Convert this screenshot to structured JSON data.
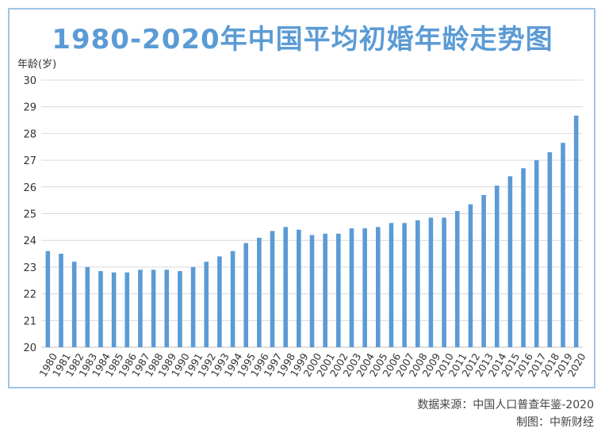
{
  "title": "1980-2020年中国平均初婚年龄走势图",
  "source_line": "数据来源：中国人口普查年鉴-2020",
  "credit_line": "制图：中新财经",
  "colors": {
    "bar": "#5b9bd5",
    "title": "#5b9bd5",
    "frame": "#9fc4e8",
    "grid": "#d9d9d9"
  },
  "chart_data": {
    "type": "bar",
    "ylabel": "年龄(岁)",
    "xlabel": "",
    "ylim": [
      20,
      30
    ],
    "yticks": [
      20,
      21,
      22,
      23,
      24,
      25,
      26,
      27,
      28,
      29,
      30
    ],
    "grid": true,
    "legend": "none",
    "categories": [
      "1980",
      "1981",
      "1982",
      "1983",
      "1984",
      "1985",
      "1986",
      "1987",
      "1988",
      "1989",
      "1990",
      "1991",
      "1992",
      "1993",
      "1994",
      "1995",
      "1996",
      "1997",
      "1998",
      "1999",
      "2000",
      "2001",
      "2002",
      "2003",
      "2004",
      "2005",
      "2006",
      "2007",
      "2008",
      "2009",
      "2010",
      "2011",
      "2012",
      "2013",
      "2014",
      "2015",
      "2016",
      "2017",
      "2018",
      "2019",
      "2020"
    ],
    "values": [
      23.6,
      23.5,
      23.2,
      23.0,
      22.85,
      22.8,
      22.8,
      22.9,
      22.9,
      22.9,
      22.85,
      23.0,
      23.2,
      23.4,
      23.6,
      23.9,
      24.1,
      24.35,
      24.5,
      24.4,
      24.2,
      24.25,
      24.25,
      24.45,
      24.45,
      24.5,
      24.65,
      24.65,
      24.75,
      24.85,
      24.85,
      25.1,
      25.35,
      25.7,
      26.05,
      26.4,
      26.7,
      27.0,
      27.3,
      27.65,
      28.67
    ]
  }
}
